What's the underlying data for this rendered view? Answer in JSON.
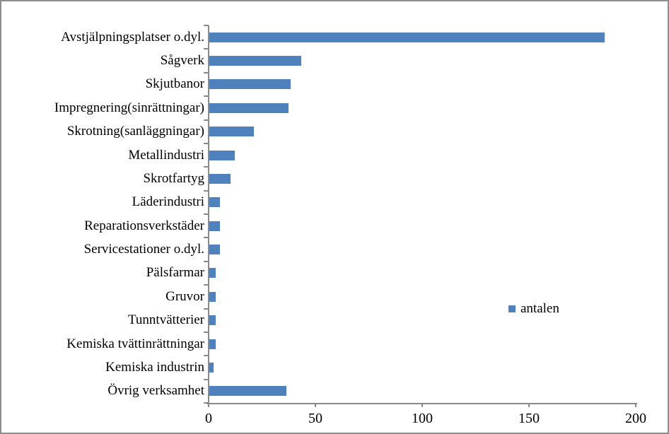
{
  "chart_data": {
    "type": "bar",
    "orientation": "horizontal",
    "title": "",
    "categories": [
      "Avstjälpningsplatser o.dyl.",
      "Sågverk",
      "Skjutbanor",
      "Impregnering(sinrättningar)",
      "Skrotning(sanläggningar)",
      "Metallindustri",
      "Skrotfartyg",
      "Läderindustri",
      "Reparationsverkstäder",
      "Servicestationer o.dyl.",
      "Pälsfarmar",
      "Gruvor",
      "Tunntvätterier",
      "Kemiska tvättinrättningar",
      "Kemiska industrin",
      "Övrig verksamhet"
    ],
    "series": [
      {
        "name": "antalen",
        "color": "#4F81BD",
        "values": [
          185,
          43,
          38,
          37,
          21,
          12,
          10,
          5,
          5,
          5,
          3,
          3,
          3,
          3,
          2,
          36
        ]
      }
    ],
    "xlim": [
      0,
      200
    ],
    "x_ticks": [
      0,
      50,
      100,
      150,
      200
    ],
    "grid": false,
    "legend": {
      "position": "right",
      "entries": [
        {
          "label": "antalen",
          "color": "#4F81BD"
        }
      ]
    },
    "colors": {
      "bar": "#4F81BD",
      "axis": "#8A8A8A",
      "text": "#000000",
      "background": "#FFFFFF",
      "border": "#8D8D8D"
    }
  }
}
